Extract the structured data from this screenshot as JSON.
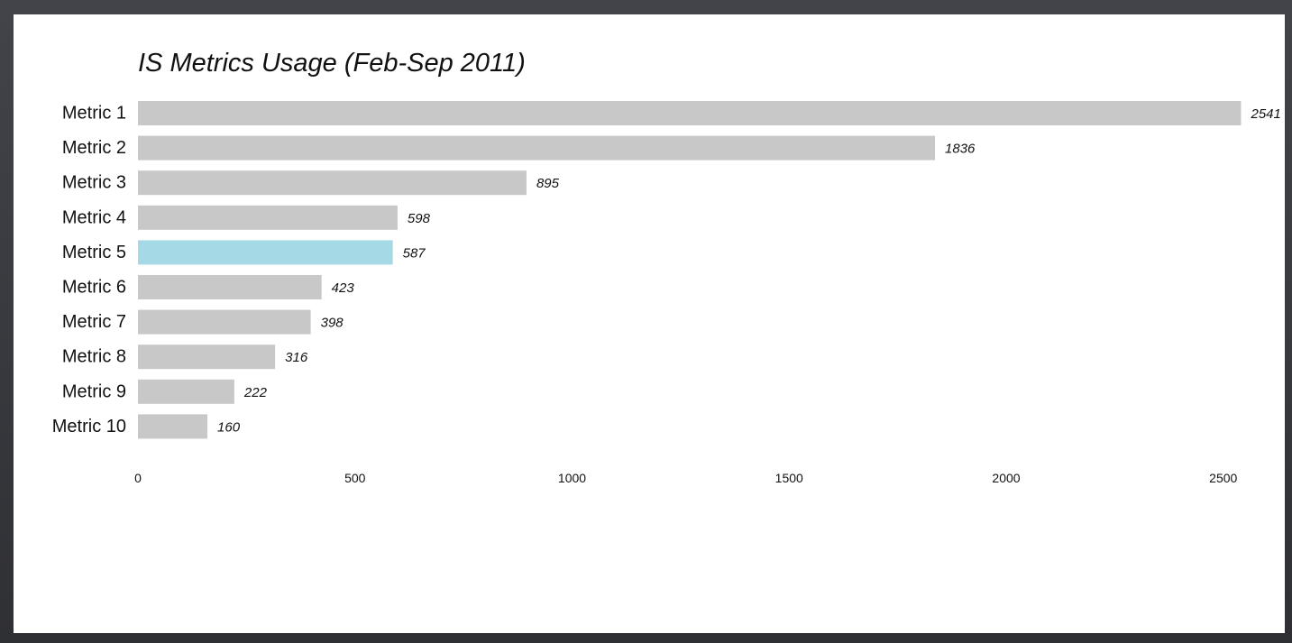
{
  "chart_data": {
    "type": "bar",
    "orientation": "horizontal",
    "title": "IS Metrics Usage (Feb-Sep 2011)",
    "xlabel": "",
    "ylabel": "",
    "categories": [
      "Metric 1",
      "Metric 2",
      "Metric 3",
      "Metric 4",
      "Metric 5",
      "Metric 6",
      "Metric 7",
      "Metric 8",
      "Metric 9",
      "Metric 10"
    ],
    "values": [
      2541,
      1836,
      895,
      598,
      587,
      423,
      398,
      316,
      222,
      160
    ],
    "value_labels": [
      "2541",
      "1836",
      "895",
      "598",
      "587",
      "423",
      "398",
      "316",
      "222",
      "160"
    ],
    "xlim": [
      0,
      2500
    ],
    "xticks": [
      0,
      500,
      1000,
      1500,
      2000,
      2500
    ],
    "xtick_labels": [
      "0",
      "500",
      "1000",
      "1500",
      "2000",
      "2500"
    ],
    "grid": false,
    "legend": "none",
    "colors": {
      "bar": "#c8c8c8",
      "highlight": "#a6d9e6",
      "text": "#111111",
      "background": "#ffffff",
      "frame": "#3a3b40"
    },
    "highlight_category": "Metric 5"
  }
}
